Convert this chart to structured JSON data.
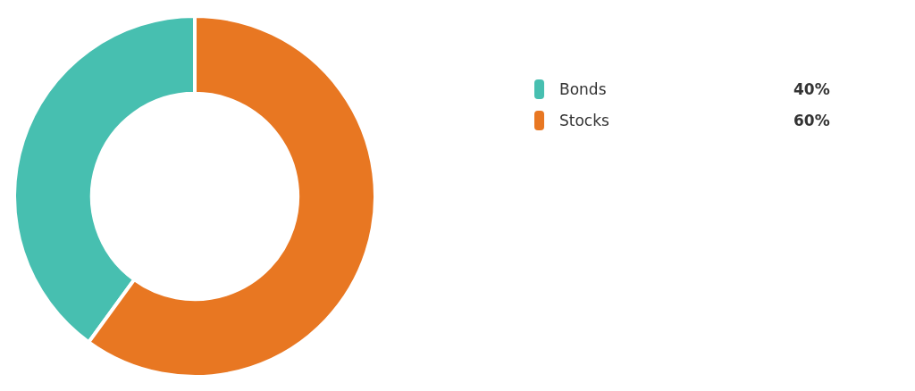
{
  "chart_data": {
    "type": "donut",
    "categories": [
      "Bonds",
      "Stocks"
    ],
    "values": [
      40,
      60
    ],
    "colors": [
      "#47bfb0",
      "#e87722"
    ],
    "legend": "right",
    "value_labels": [
      "40%",
      "60%"
    ]
  }
}
